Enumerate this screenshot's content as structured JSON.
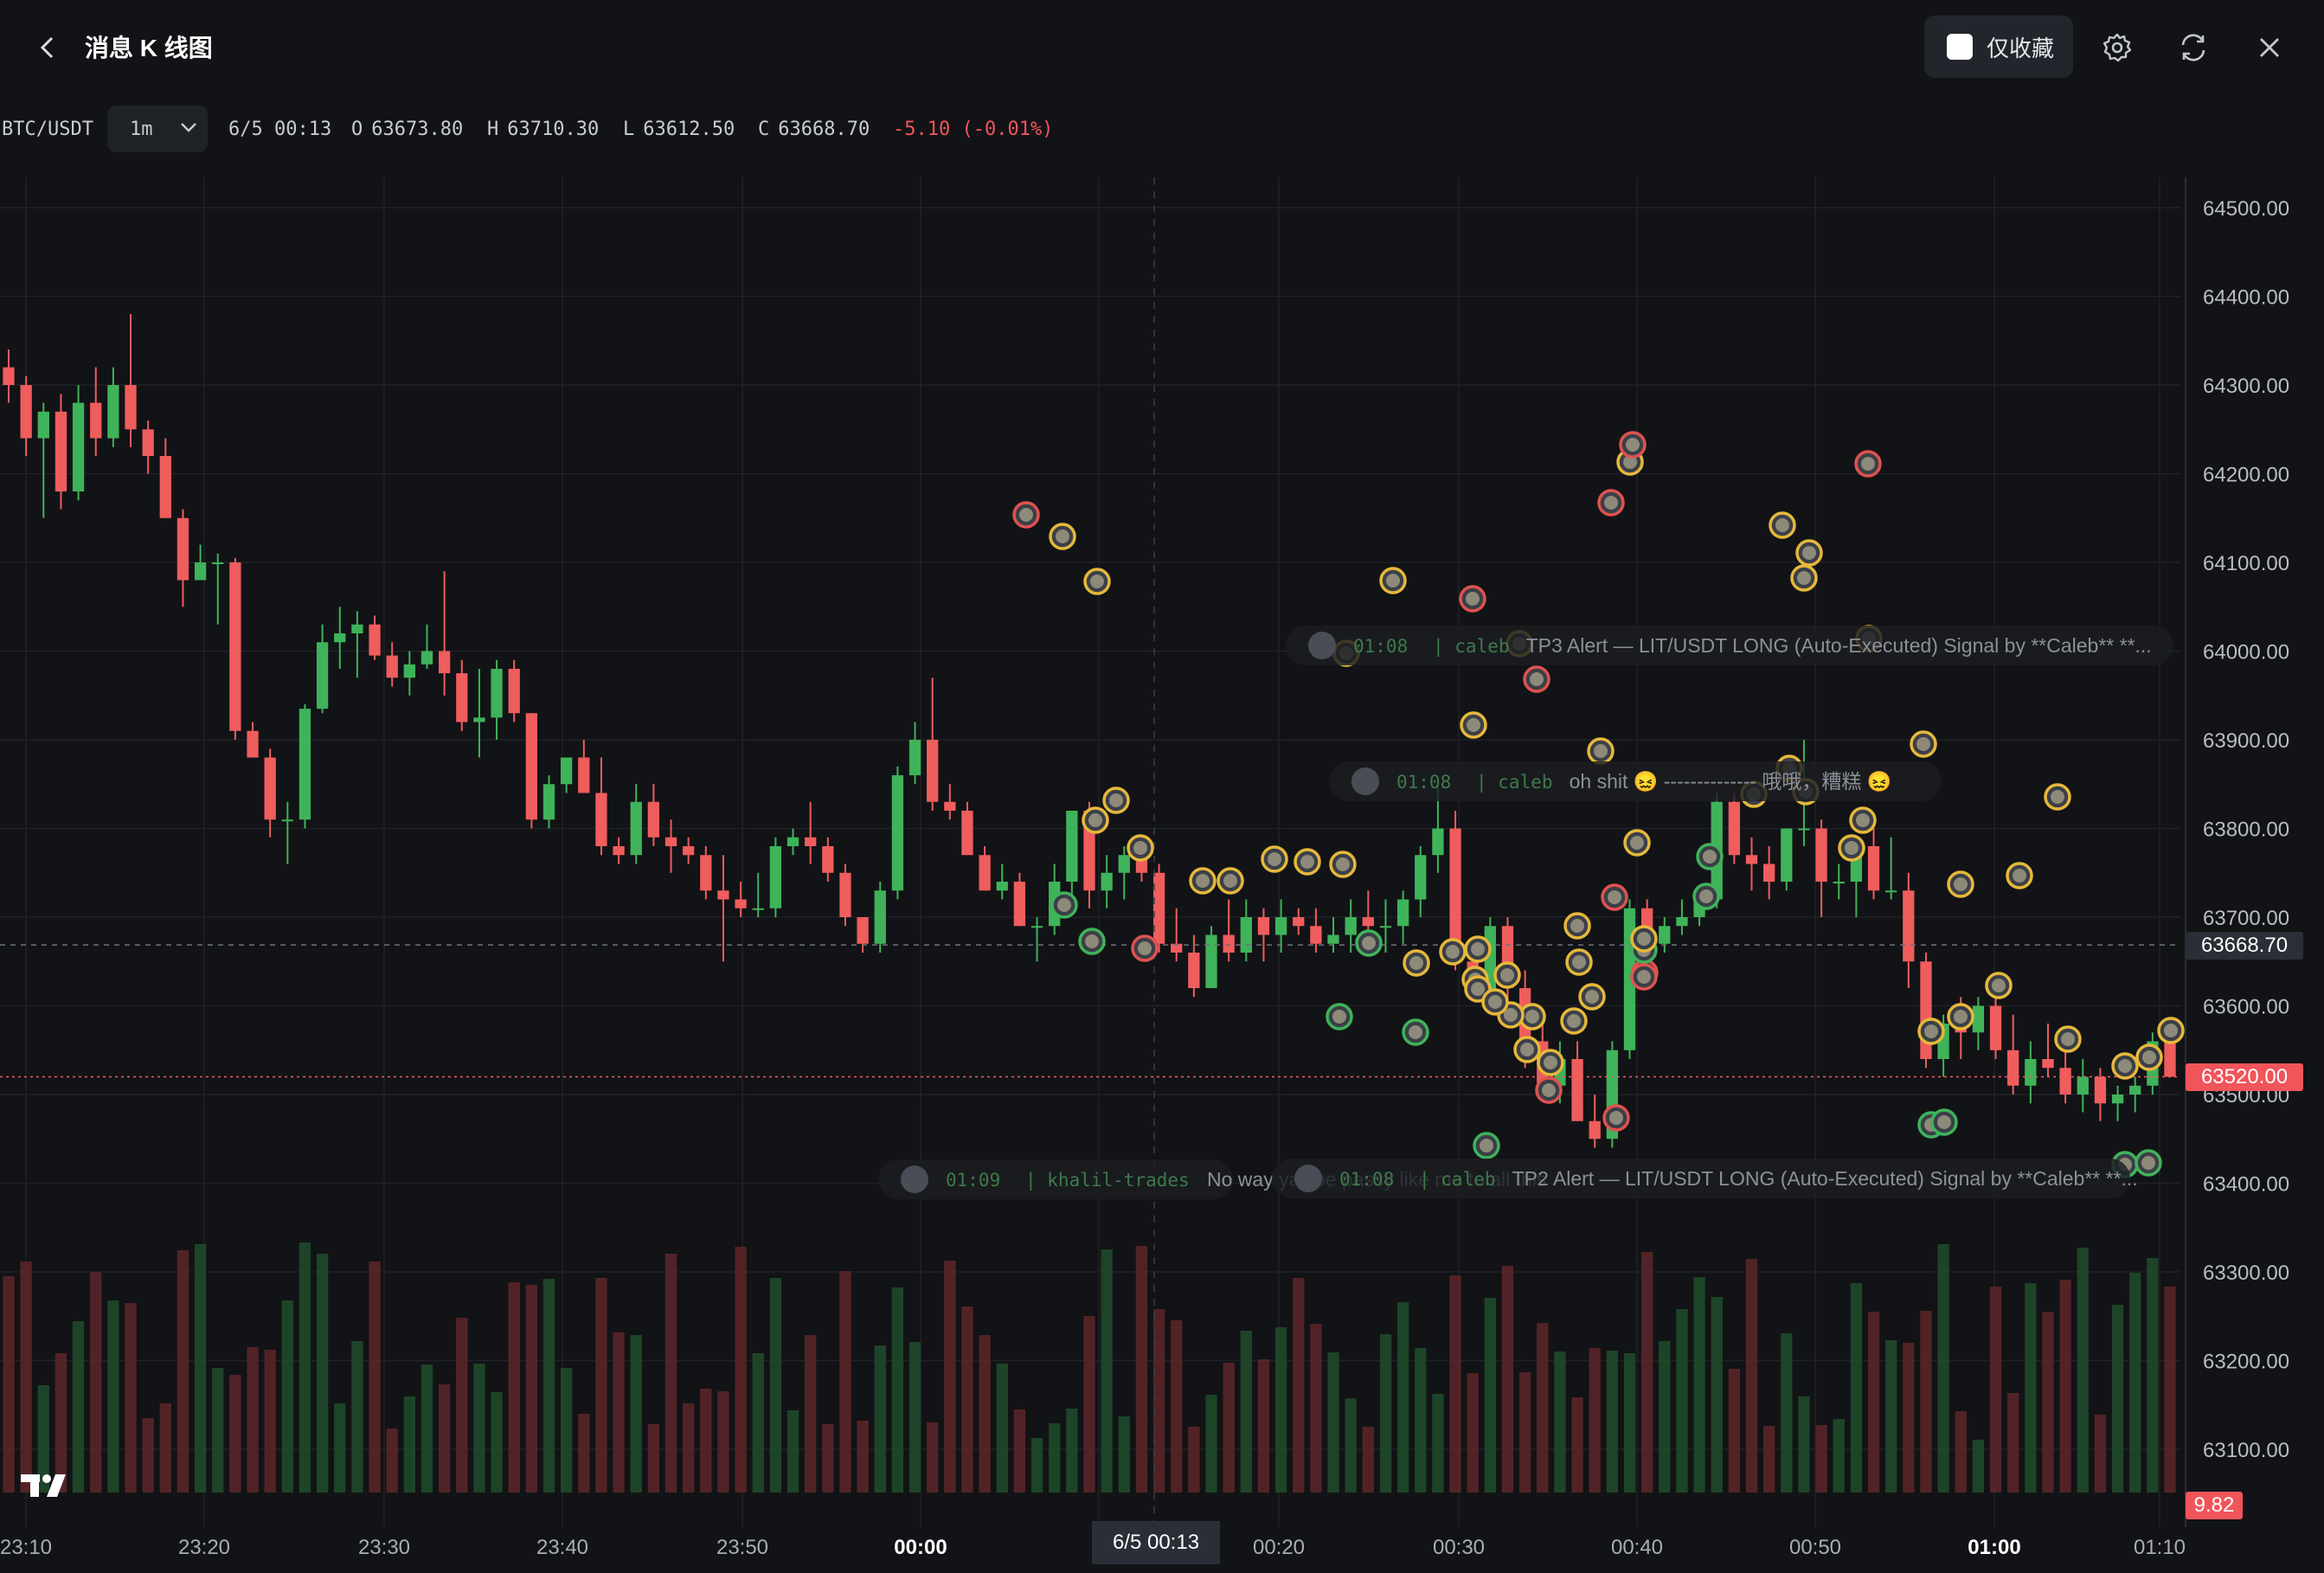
{
  "header": {
    "title": "消息 K 线图",
    "favorites_only_label": "仅收藏",
    "icons": [
      "back-arrow-icon",
      "gear-icon",
      "refresh-icon",
      "close-icon"
    ]
  },
  "ohlc": {
    "symbol": "BTC/USDT",
    "interval": "1m",
    "datetime": "6/5 00:13",
    "open_label": "O",
    "open": "63673.80",
    "high_label": "H",
    "high": "63710.30",
    "low_label": "L",
    "low": "63612.50",
    "close_label": "C",
    "close": "63668.70",
    "change": "-5.10 (-0.01%)"
  },
  "axis": {
    "price_labels": [
      "64500.00",
      "64400.00",
      "64300.00",
      "64200.00",
      "64100.00",
      "64000.00",
      "63900.00",
      "63800.00",
      "63700.00",
      "63600.00",
      "63500.00",
      "63400.00",
      "63300.00",
      "63200.00",
      "63100.00"
    ],
    "time_labels": [
      {
        "text": "23:10",
        "bold": false
      },
      {
        "text": "23:20",
        "bold": false
      },
      {
        "text": "23:30",
        "bold": false
      },
      {
        "text": "23:40",
        "bold": false
      },
      {
        "text": "23:50",
        "bold": false
      },
      {
        "text": "00:00",
        "bold": true
      },
      {
        "text": "00:20",
        "bold": false
      },
      {
        "text": "00:30",
        "bold": false
      },
      {
        "text": "00:40",
        "bold": false
      },
      {
        "text": "00:50",
        "bold": false
      },
      {
        "text": "01:00",
        "bold": true
      },
      {
        "text": "01:10",
        "bold": false
      }
    ],
    "cursor_time": "6/5 00:13",
    "last_price_tag": "63668.70",
    "current_price_tag": "63520.00",
    "volume_tag": "9.82"
  },
  "messages": [
    {
      "time": "01:08",
      "user": "| caleb",
      "text": "TP3 Alert — LIT/USDT LONG (Auto-Executed) Signal by **Caleb** **..."
    },
    {
      "time": "01:08",
      "user": "| caleb",
      "text": "oh shit 😖 -------------- 哦哦，糟糕 😖"
    },
    {
      "time": "01:09",
      "user": "| khalil-trades",
      "text": "No way yall be passy like me to all this"
    },
    {
      "time": "01:08",
      "user": "| caleb",
      "text": "TP2 Alert — LIT/USDT LONG (Auto-Executed) Signal by **Caleb** **..."
    }
  ],
  "chart_data": {
    "type": "candlestick",
    "symbol": "BTC/USDT",
    "interval": "1m",
    "ylim": [
      63040,
      64540
    ],
    "candles": [
      [
        64320,
        64340,
        64280,
        64300
      ],
      [
        64300,
        64310,
        64220,
        64240
      ],
      [
        64240,
        64280,
        64150,
        64270
      ],
      [
        64270,
        64290,
        64160,
        64180
      ],
      [
        64180,
        64300,
        64170,
        64280
      ],
      [
        64280,
        64320,
        64220,
        64240
      ],
      [
        64240,
        64320,
        64230,
        64300
      ],
      [
        64300,
        64380,
        64230,
        64250
      ],
      [
        64250,
        64260,
        64200,
        64220
      ],
      [
        64220,
        64240,
        64150,
        64150
      ],
      [
        64150,
        64160,
        64050,
        64080
      ],
      [
        64080,
        64120,
        64080,
        64100
      ],
      [
        64100,
        64110,
        64030,
        64100
      ],
      [
        64100,
        64105,
        63900,
        63910
      ],
      [
        63910,
        63920,
        63880,
        63880
      ],
      [
        63880,
        63890,
        63790,
        63810
      ],
      [
        63810,
        63830,
        63760,
        63810
      ],
      [
        63810,
        63940,
        63800,
        63935
      ],
      [
        63935,
        64030,
        63930,
        64010
      ],
      [
        64010,
        64050,
        63980,
        64020
      ],
      [
        64020,
        64045,
        63970,
        64030
      ],
      [
        64030,
        64040,
        63990,
        63995
      ],
      [
        63995,
        64010,
        63960,
        63970
      ],
      [
        63970,
        64000,
        63950,
        63985
      ],
      [
        63985,
        64030,
        63980,
        64000
      ],
      [
        64000,
        64090,
        63950,
        63975
      ],
      [
        63975,
        63990,
        63910,
        63920
      ],
      [
        63920,
        63980,
        63880,
        63925
      ],
      [
        63925,
        63990,
        63900,
        63980
      ],
      [
        63980,
        63990,
        63920,
        63930
      ],
      [
        63930,
        63930,
        63800,
        63810
      ],
      [
        63810,
        63860,
        63800,
        63850
      ],
      [
        63850,
        63880,
        63840,
        63880
      ],
      [
        63880,
        63900,
        63840,
        63840
      ],
      [
        63840,
        63880,
        63770,
        63780
      ],
      [
        63780,
        63790,
        63760,
        63770
      ],
      [
        63770,
        63850,
        63760,
        63830
      ],
      [
        63830,
        63850,
        63780,
        63790
      ],
      [
        63790,
        63810,
        63750,
        63780
      ],
      [
        63780,
        63790,
        63760,
        63770
      ],
      [
        63770,
        63780,
        63720,
        63730
      ],
      [
        63730,
        63770,
        63650,
        63720
      ],
      [
        63720,
        63740,
        63700,
        63710
      ],
      [
        63710,
        63750,
        63700,
        63710
      ],
      [
        63710,
        63790,
        63700,
        63780
      ],
      [
        63780,
        63800,
        63770,
        63790
      ],
      [
        63790,
        63830,
        63760,
        63780
      ],
      [
        63780,
        63790,
        63740,
        63750
      ],
      [
        63750,
        63760,
        63690,
        63700
      ],
      [
        63700,
        63700,
        63660,
        63670
      ],
      [
        63670,
        63740,
        63660,
        63730
      ],
      [
        63730,
        63870,
        63720,
        63860
      ],
      [
        63860,
        63920,
        63850,
        63900
      ],
      [
        63900,
        63970,
        63820,
        63830
      ],
      [
        63830,
        63850,
        63810,
        63820
      ],
      [
        63820,
        63830,
        63770,
        63770
      ],
      [
        63770,
        63780,
        63730,
        63730
      ],
      [
        63730,
        63760,
        63720,
        63740
      ],
      [
        63740,
        63750,
        63690,
        63690
      ],
      [
        63690,
        63700,
        63650,
        63690
      ],
      [
        63690,
        63760,
        63680,
        63740
      ],
      [
        63740,
        63820,
        63710,
        63820
      ],
      [
        63820,
        63830,
        63710,
        63730
      ],
      [
        63730,
        63770,
        63710,
        63750
      ],
      [
        63750,
        63780,
        63720,
        63770
      ],
      [
        63770,
        63790,
        63740,
        63750
      ],
      [
        63750,
        63760,
        63660,
        63670
      ],
      [
        63670,
        63710,
        63650,
        63660
      ],
      [
        63660,
        63680,
        63610,
        63620
      ],
      [
        63620,
        63690,
        63620,
        63680
      ],
      [
        63680,
        63720,
        63650,
        63660
      ],
      [
        63660,
        63720,
        63650,
        63700
      ],
      [
        63700,
        63710,
        63650,
        63680
      ],
      [
        63680,
        63720,
        63660,
        63700
      ],
      [
        63700,
        63710,
        63680,
        63690
      ],
      [
        63690,
        63710,
        63660,
        63670
      ],
      [
        63670,
        63700,
        63660,
        63680
      ],
      [
        63680,
        63720,
        63660,
        63700
      ],
      [
        63700,
        63730,
        63680,
        63690
      ],
      [
        63690,
        63720,
        63660,
        63690
      ],
      [
        63690,
        63730,
        63670,
        63720
      ],
      [
        63720,
        63780,
        63700,
        63770
      ],
      [
        63770,
        63850,
        63750,
        63800
      ],
      [
        63800,
        63820,
        63640,
        63650
      ],
      [
        63650,
        63670,
        63610,
        63610
      ],
      [
        63610,
        63700,
        63600,
        63690
      ],
      [
        63690,
        63700,
        63600,
        63620
      ],
      [
        63620,
        63640,
        63530,
        63560
      ],
      [
        63560,
        63580,
        63500,
        63510
      ],
      [
        63510,
        63560,
        63490,
        63540
      ],
      [
        63540,
        63560,
        63470,
        63470
      ],
      [
        63470,
        63500,
        63440,
        63450
      ],
      [
        63450,
        63560,
        63440,
        63550
      ],
      [
        63550,
        63720,
        63540,
        63710
      ],
      [
        63710,
        63720,
        63660,
        63670
      ],
      [
        63670,
        63700,
        63660,
        63690
      ],
      [
        63690,
        63720,
        63680,
        63700
      ],
      [
        63700,
        63730,
        63690,
        63720
      ],
      [
        63720,
        63840,
        63710,
        63830
      ],
      [
        63830,
        63840,
        63760,
        63770
      ],
      [
        63770,
        63790,
        63730,
        63760
      ],
      [
        63760,
        63780,
        63720,
        63740
      ],
      [
        63740,
        63800,
        63730,
        63800
      ],
      [
        63800,
        63900,
        63780,
        63800
      ],
      [
        63800,
        63810,
        63700,
        63740
      ],
      [
        63740,
        63760,
        63720,
        63740
      ],
      [
        63740,
        63790,
        63700,
        63780
      ],
      [
        63780,
        63800,
        63720,
        63730
      ],
      [
        63730,
        63790,
        63720,
        63730
      ],
      [
        63730,
        63750,
        63620,
        63650
      ],
      [
        63650,
        63660,
        63530,
        63540
      ],
      [
        63540,
        63590,
        63520,
        63580
      ],
      [
        63580,
        63610,
        63540,
        63570
      ],
      [
        63570,
        63610,
        63550,
        63600
      ],
      [
        63600,
        63620,
        63540,
        63550
      ],
      [
        63550,
        63590,
        63500,
        63510
      ],
      [
        63510,
        63560,
        63490,
        63540
      ],
      [
        63540,
        63580,
        63520,
        63530
      ],
      [
        63530,
        63550,
        63490,
        63500
      ],
      [
        63500,
        63540,
        63480,
        63520
      ],
      [
        63520,
        63530,
        63470,
        63490
      ],
      [
        63490,
        63510,
        63470,
        63500
      ],
      [
        63500,
        63520,
        63480,
        63510
      ],
      [
        63510,
        63570,
        63500,
        63560
      ],
      [
        63560,
        63580,
        63520,
        63520
      ]
    ],
    "volume_ylim": [
      0,
      10
    ]
  }
}
